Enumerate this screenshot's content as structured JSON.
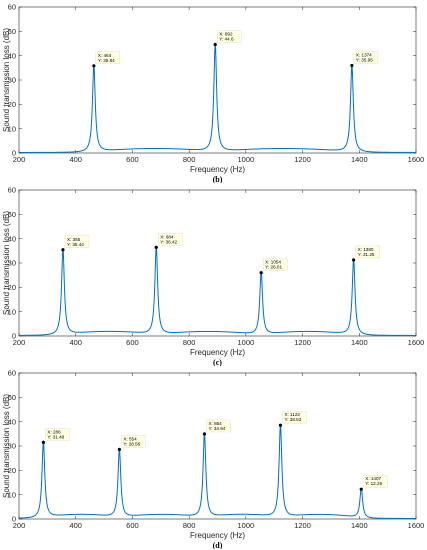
{
  "chart_data": [
    {
      "type": "line",
      "panel_label": "(b)",
      "xlabel": "Frequency (Hz)",
      "ylabel": "Sound transmission loss (dB)",
      "xlim": [
        200,
        1600
      ],
      "ylim": [
        0,
        60
      ],
      "xticks": [
        "200",
        "400",
        "600",
        "800",
        "1000",
        "1200",
        "1400",
        "1600"
      ],
      "yticks": [
        "0",
        "10",
        "20",
        "30",
        "40",
        "50",
        "60"
      ],
      "line_color": "#0072bd",
      "peaks": [
        {
          "x": 464,
          "y": 35.84,
          "x_text": "X: 464",
          "y_text": "Y: 35.84"
        },
        {
          "x": 892,
          "y": 44.6,
          "x_text": "X: 892",
          "y_text": "Y: 44.6"
        },
        {
          "x": 1374,
          "y": 35.95,
          "x_text": "X: 1374",
          "y_text": "Y: 35.95"
        }
      ]
    },
    {
      "type": "line",
      "panel_label": "(c)",
      "xlabel": "Frequency (Hz)",
      "ylabel": "Sound transmission loss (dB)",
      "xlim": [
        200,
        1600
      ],
      "ylim": [
        0,
        60
      ],
      "xticks": [
        "200",
        "400",
        "600",
        "800",
        "1000",
        "1200",
        "1400",
        "1600"
      ],
      "yticks": [
        "0",
        "10",
        "20",
        "30",
        "40",
        "50",
        "60"
      ],
      "line_color": "#0072bd",
      "peaks": [
        {
          "x": 355,
          "y": 35.44,
          "x_text": "X: 355",
          "y_text": "Y: 35.44"
        },
        {
          "x": 684,
          "y": 36.42,
          "x_text": "X: 684",
          "y_text": "Y: 36.42"
        },
        {
          "x": 1054,
          "y": 26.01,
          "x_text": "X: 1054",
          "y_text": "Y: 26.01"
        },
        {
          "x": 1380,
          "y": 31.25,
          "x_text": "X: 1380",
          "y_text": "Y: 31.25"
        }
      ]
    },
    {
      "type": "line",
      "panel_label": "(d)",
      "xlabel": "Frequency (Hz)",
      "ylabel": "Sound transmission loss (dB)",
      "xlim": [
        200,
        1600
      ],
      "ylim": [
        0,
        60
      ],
      "xticks": [
        "200",
        "400",
        "600",
        "800",
        "1000",
        "1200",
        "1400",
        "1600"
      ],
      "yticks": [
        "0",
        "10",
        "20",
        "30",
        "40",
        "50",
        "60"
      ],
      "line_color": "#0072bd",
      "peaks": [
        {
          "x": 286,
          "y": 31.48,
          "x_text": "X: 286",
          "y_text": "Y: 31.48"
        },
        {
          "x": 554,
          "y": 28.56,
          "x_text": "X: 554",
          "y_text": "Y: 28.56"
        },
        {
          "x": 854,
          "y": 34.94,
          "x_text": "X: 854",
          "y_text": "Y: 34.94"
        },
        {
          "x": 1122,
          "y": 38.53,
          "x_text": "X: 1122",
          "y_text": "Y: 38.53"
        },
        {
          "x": 1407,
          "y": 12.26,
          "x_text": "X: 1407",
          "y_text": "Y: 12.26"
        }
      ]
    }
  ]
}
